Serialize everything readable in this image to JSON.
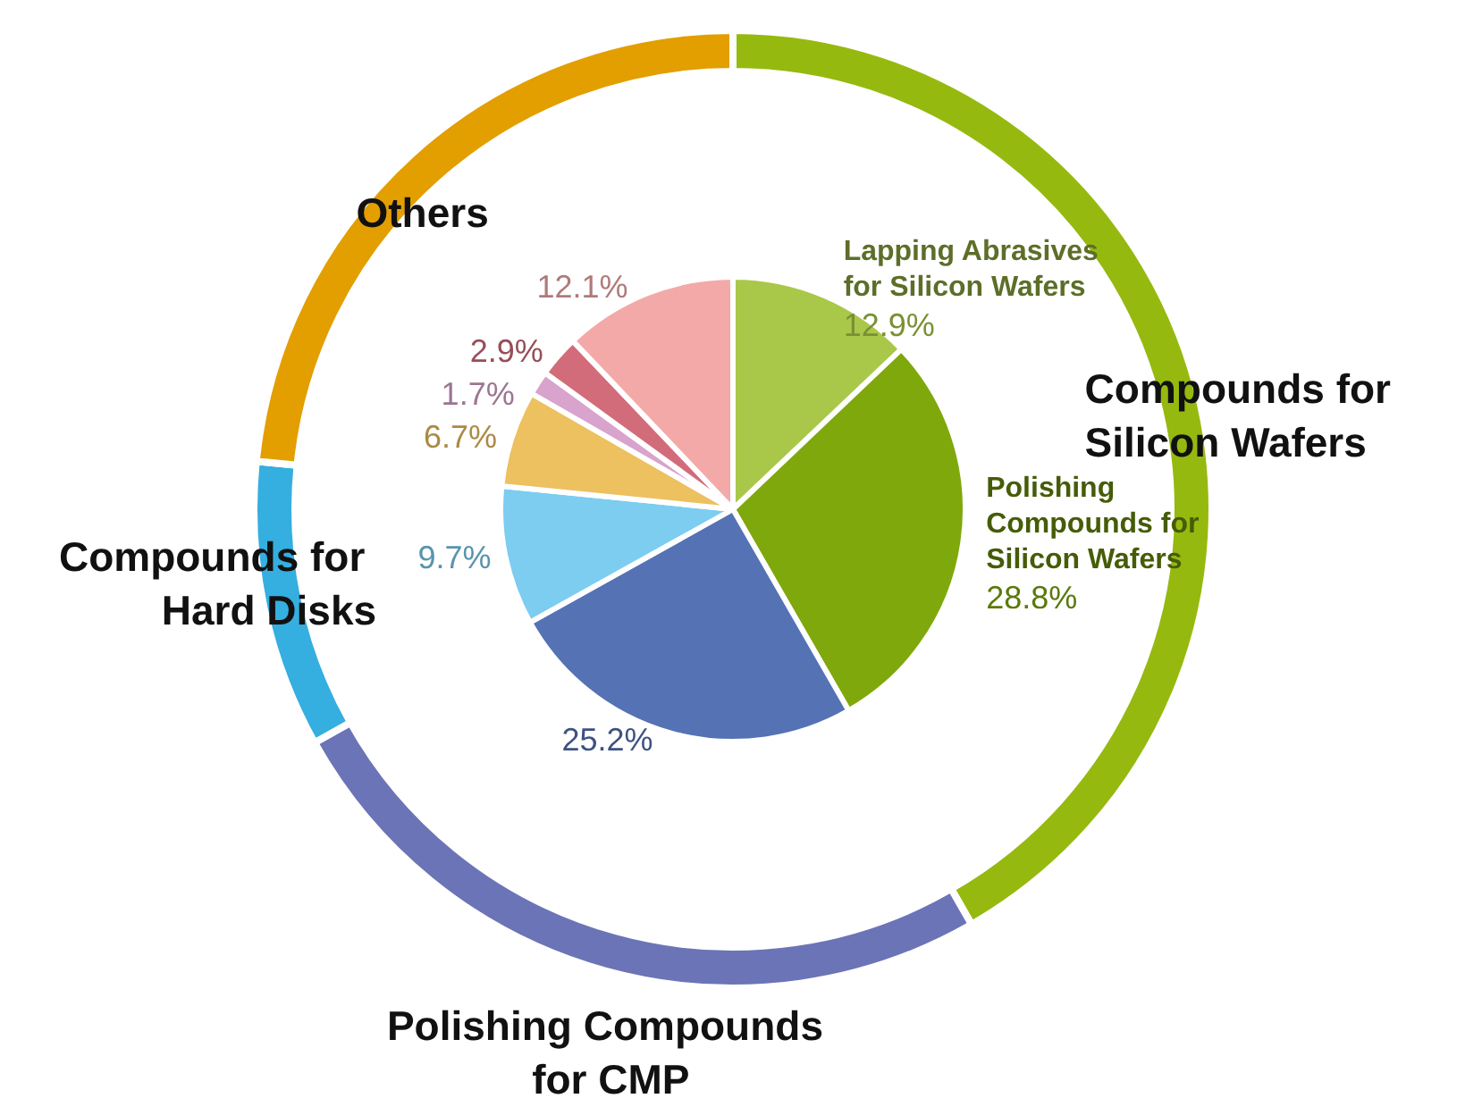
{
  "chart_data": [
    {
      "type": "donut",
      "categories": [
        "Compounds for Silicon Wafers",
        "Polishing Compounds for CMP",
        "Compounds for Hard Disks",
        "Others"
      ],
      "values": [
        41.7,
        25.2,
        9.7,
        23.4
      ],
      "colors": [
        "#96b90f",
        "#6b74b6",
        "#35aee0",
        "#e39e00"
      ]
    },
    {
      "type": "pie",
      "categories": [
        "Lapping Abrasives\nfor Silicon Wafers",
        "Polishing\nCompounds for\nSilicon Wafers",
        null,
        null,
        null,
        null,
        null,
        null
      ],
      "values": [
        12.9,
        28.8,
        25.2,
        9.7,
        6.7,
        1.7,
        2.9,
        12.1
      ],
      "colors": [
        "#a9c84a",
        "#7fa80c",
        "#5572b5",
        "#7ccdf0",
        "#edc060",
        "#d8a3cc",
        "#d36c7a",
        "#f4a9a9"
      ],
      "value_labels": [
        "12.9%",
        "28.8%",
        "25.2%",
        "9.7%",
        "6.7%",
        "1.7%",
        "2.9%",
        "12.1%"
      ]
    }
  ]
}
